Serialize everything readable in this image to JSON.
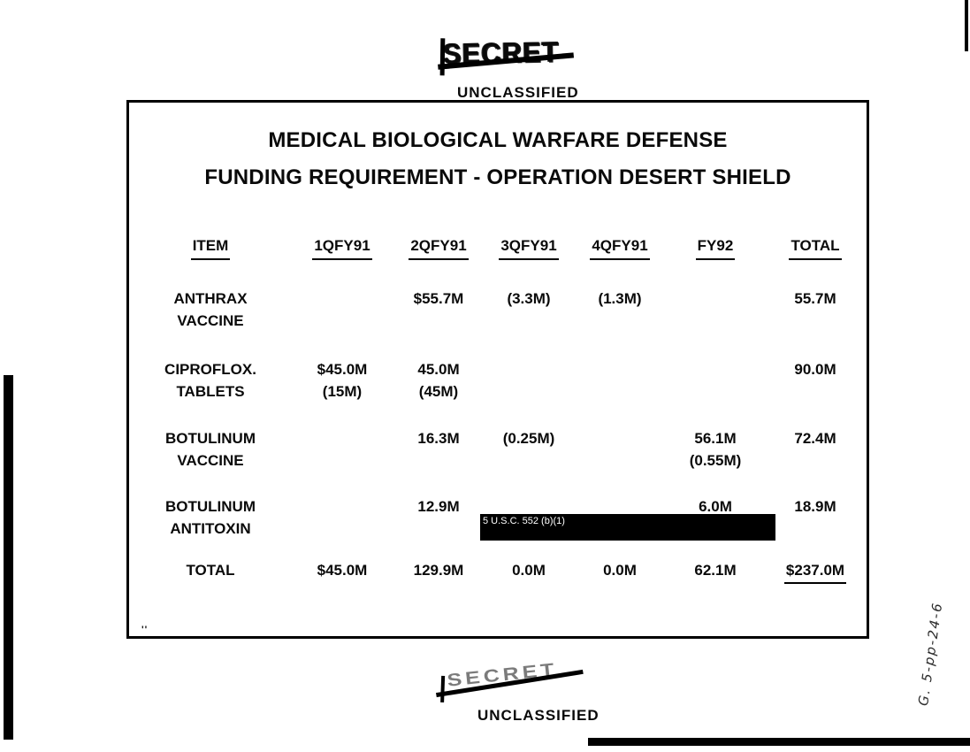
{
  "classification": {
    "top_struck": "SECRET",
    "top_clear": "UNCLASSIFIED",
    "bottom_struck": "SECRET",
    "bottom_clear": "UNCLASSIFIED"
  },
  "title": {
    "line1": "MEDICAL BIOLOGICAL WARFARE DEFENSE",
    "line2": "FUNDING REQUIREMENT - OPERATION DESERT SHIELD"
  },
  "table": {
    "headers": [
      "ITEM",
      "1QFY91",
      "2QFY91",
      "3QFY91",
      "4QFY91",
      "FY92",
      "TOTAL"
    ],
    "rows": [
      {
        "item": [
          "ANTHRAX",
          "VACCINE"
        ],
        "cells": [
          [
            "",
            ""
          ],
          [
            "$55.7M",
            ""
          ],
          [
            "",
            "(3.3M)"
          ],
          [
            "",
            "(1.3M)"
          ],
          [
            "",
            ""
          ],
          [
            "55.7M",
            ""
          ]
        ]
      },
      {
        "item": [
          "CIPROFLOX.",
          "TABLETS"
        ],
        "cells": [
          [
            "$45.0M",
            "(15M)"
          ],
          [
            "45.0M",
            "(45M)"
          ],
          [
            "",
            ""
          ],
          [
            "",
            ""
          ],
          [
            "",
            ""
          ],
          [
            "90.0M",
            ""
          ]
        ]
      },
      {
        "item": [
          "BOTULINUM",
          "VACCINE"
        ],
        "cells": [
          [
            "",
            ""
          ],
          [
            "16.3M",
            ""
          ],
          [
            "",
            "(0.25M)"
          ],
          [
            "",
            ""
          ],
          [
            "56.1M",
            "(0.55M)"
          ],
          [
            "72.4M",
            ""
          ]
        ]
      },
      {
        "item": [
          "BOTULINUM",
          "ANTITOXIN"
        ],
        "cells": [
          [
            "",
            ""
          ],
          [
            "12.9M",
            ""
          ],
          [
            "",
            ""
          ],
          [
            "",
            ""
          ],
          [
            "6.0M",
            ""
          ],
          [
            "18.9M",
            ""
          ]
        ]
      }
    ],
    "total_row": {
      "label": "TOTAL",
      "cells": [
        "$45.0M",
        "129.9M",
        "0.0M",
        "0.0M",
        "62.1M",
        "$237.0M"
      ]
    }
  },
  "redaction": {
    "label": "5 U.S.C. 552 (b)(1)"
  },
  "annotation": {
    "text": "G. 5-pp-24-6"
  },
  "stray_mark": "''"
}
